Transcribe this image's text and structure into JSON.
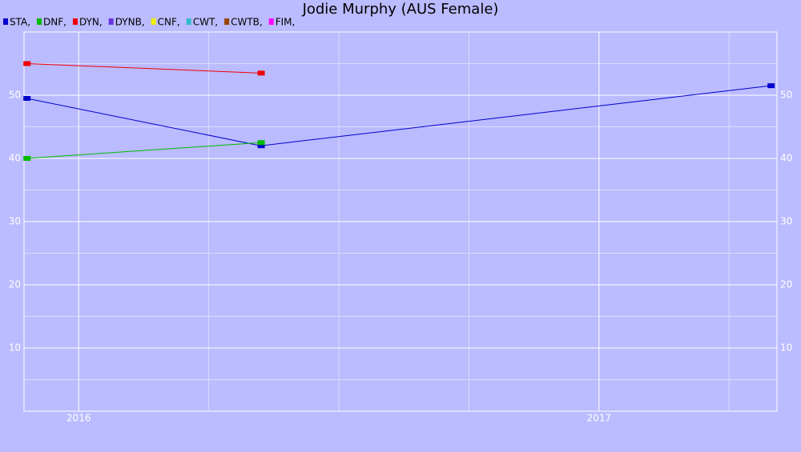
{
  "chart_data": {
    "type": "line",
    "title": "Jodie Murphy (AUS Female)",
    "x": [
      2015.9,
      2016.35,
      2017.33
    ],
    "xlim": [
      2015.895,
      2017.342
    ],
    "xticks": [
      2016,
      2017
    ],
    "minor_xticks": [
      2016.25,
      2016.5,
      2016.75,
      2017.25
    ],
    "ylim": [
      0,
      60
    ],
    "yticks": [
      10,
      20,
      30,
      40,
      50
    ],
    "minor_yticks": [
      5,
      15,
      25,
      35,
      45,
      55
    ],
    "grid": true,
    "series": [
      {
        "name": "STA,",
        "color": "#0000cc",
        "values": [
          49.5,
          42,
          51.5
        ]
      },
      {
        "name": "DNF,",
        "color": "#00bb00",
        "values": [
          40,
          42.5,
          null
        ]
      },
      {
        "name": "DYN,",
        "color": "#ee0000",
        "values": [
          55,
          53.5,
          null
        ]
      },
      {
        "name": "DYNB,",
        "color": "#6633dd",
        "values": [
          null,
          null,
          null
        ]
      },
      {
        "name": "CNF,",
        "color": "#eeee00",
        "values": [
          null,
          null,
          null
        ]
      },
      {
        "name": "CWT,",
        "color": "#33bbcc",
        "values": [
          null,
          null,
          null
        ]
      },
      {
        "name": "CWTB,",
        "color": "#994400",
        "values": [
          null,
          null,
          null
        ]
      },
      {
        "name": "FIM,",
        "color": "#ff00ff",
        "values": [
          null,
          null,
          null
        ]
      }
    ]
  }
}
